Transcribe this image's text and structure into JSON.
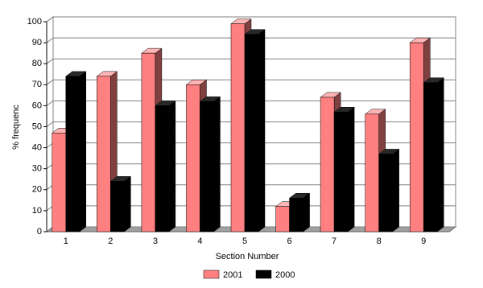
{
  "chart_data": {
    "type": "bar3d",
    "x_label": "Section Number",
    "y_label": "% frequenc",
    "categories": [
      "1",
      "2",
      "3",
      "4",
      "5",
      "6",
      "7",
      "8",
      "9"
    ],
    "series": [
      {
        "name": "2001",
        "color": "#ff8080",
        "values": [
          47,
          74,
          85,
          70,
          99,
          12,
          64,
          56,
          90
        ]
      },
      {
        "name": "2000",
        "color": "#000000",
        "values": [
          74,
          24,
          60,
          62,
          94,
          16,
          57,
          37,
          71
        ]
      }
    ],
    "ylim": [
      0,
      100
    ],
    "yticks": [
      0,
      10,
      20,
      30,
      40,
      50,
      60,
      70,
      80,
      90,
      100
    ],
    "grid": true,
    "legend": "bottom"
  }
}
